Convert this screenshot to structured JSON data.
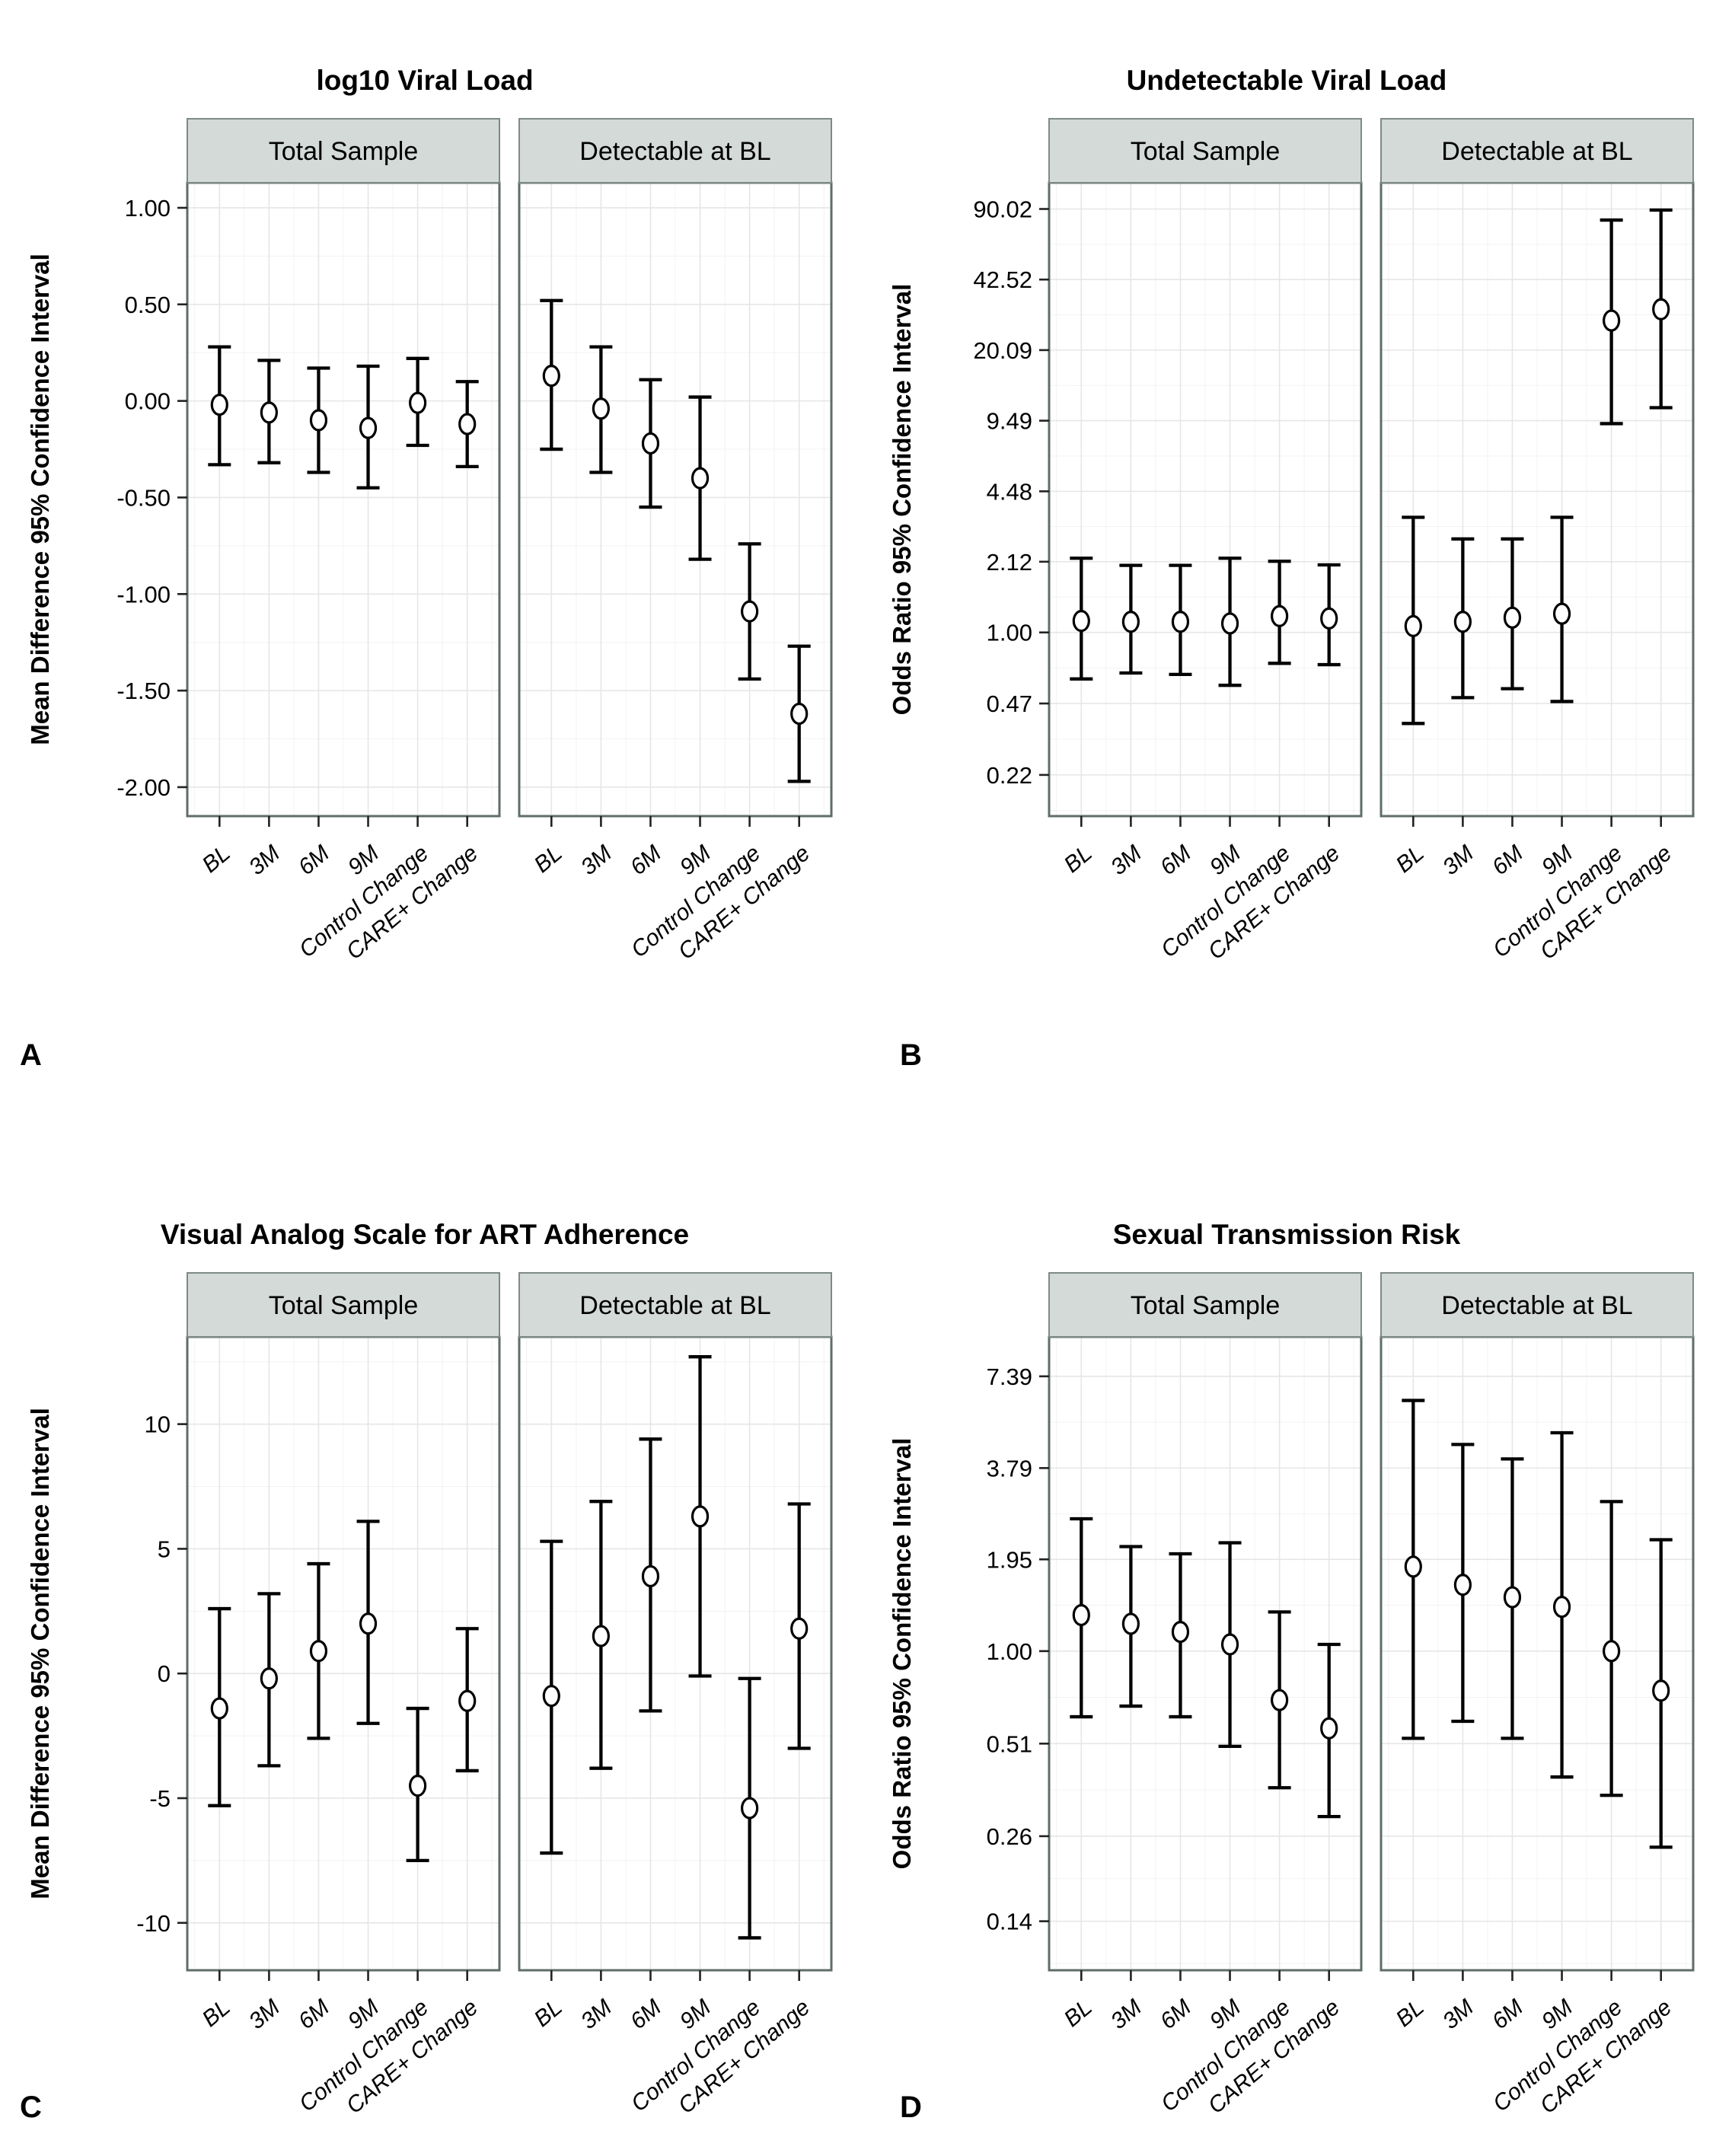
{
  "panel_letters": [
    "A",
    "B",
    "C",
    "D"
  ],
  "facet_names": [
    "Total Sample",
    "Detectable at BL"
  ],
  "categories": [
    "BL",
    "3M",
    "6M",
    "9M",
    "Control Change",
    "CARE+ Change"
  ],
  "colors": {
    "background": "#ffffff",
    "strip_fill": "#d4dad7",
    "strip_border": "#7d8a86",
    "panel_border": "#5f6d6a",
    "grid_major": "#e4e7e6",
    "grid_minor": "#f1f3f2",
    "tick": "#222222",
    "data": "#000000"
  },
  "chart_data": [
    {
      "id": "A",
      "type": "scatter",
      "error_bars": true,
      "title": "log10 Viral Load",
      "ylabel": "Mean Difference 95% Confidence Interval",
      "scale": "linear",
      "ylim": [
        -2.15,
        1.13
      ],
      "yticks": [
        1.0,
        0.5,
        0.0,
        -0.5,
        -1.0,
        -1.5,
        -2.0
      ],
      "ytick_labels": [
        "1.00",
        "0.50",
        "0.00",
        "-0.50",
        "-1.00",
        "-1.50",
        "-2.00"
      ],
      "legend": "none",
      "grid": true,
      "facets": [
        {
          "name": "Total Sample",
          "points": [
            {
              "x": "BL",
              "y": -0.02,
              "lo": -0.33,
              "hi": 0.28
            },
            {
              "x": "3M",
              "y": -0.06,
              "lo": -0.32,
              "hi": 0.21
            },
            {
              "x": "6M",
              "y": -0.1,
              "lo": -0.37,
              "hi": 0.17
            },
            {
              "x": "9M",
              "y": -0.14,
              "lo": -0.45,
              "hi": 0.18
            },
            {
              "x": "Control Change",
              "y": -0.01,
              "lo": -0.23,
              "hi": 0.22
            },
            {
              "x": "CARE+ Change",
              "y": -0.12,
              "lo": -0.34,
              "hi": 0.1
            }
          ]
        },
        {
          "name": "Detectable at BL",
          "points": [
            {
              "x": "BL",
              "y": 0.13,
              "lo": -0.25,
              "hi": 0.52
            },
            {
              "x": "3M",
              "y": -0.04,
              "lo": -0.37,
              "hi": 0.28
            },
            {
              "x": "6M",
              "y": -0.22,
              "lo": -0.55,
              "hi": 0.11
            },
            {
              "x": "9M",
              "y": -0.4,
              "lo": -0.82,
              "hi": 0.02
            },
            {
              "x": "Control Change",
              "y": -1.09,
              "lo": -1.44,
              "hi": -0.74
            },
            {
              "x": "CARE+ Change",
              "y": -1.62,
              "lo": -1.97,
              "hi": -1.27
            }
          ]
        }
      ]
    },
    {
      "id": "B",
      "type": "scatter",
      "error_bars": true,
      "title": "Undetectable Viral Load",
      "ylabel": "Odds Ratio 95% Confidence Interval",
      "scale": "log",
      "ylim": [
        0.142,
        119.0
      ],
      "yticks": [
        90.02,
        42.52,
        20.09,
        9.49,
        4.48,
        2.12,
        1.0,
        0.47,
        0.22
      ],
      "ytick_labels": [
        "90.02",
        "42.52",
        "20.09",
        "9.49",
        "4.48",
        "2.12",
        "1.00",
        "0.47",
        "0.22"
      ],
      "legend": "none",
      "grid": true,
      "facets": [
        {
          "name": "Total Sample",
          "points": [
            {
              "x": "BL",
              "y": 1.13,
              "lo": 0.61,
              "hi": 2.2
            },
            {
              "x": "3M",
              "y": 1.12,
              "lo": 0.65,
              "hi": 2.04
            },
            {
              "x": "6M",
              "y": 1.12,
              "lo": 0.64,
              "hi": 2.04
            },
            {
              "x": "9M",
              "y": 1.1,
              "lo": 0.57,
              "hi": 2.2
            },
            {
              "x": "Control Change",
              "y": 1.19,
              "lo": 0.72,
              "hi": 2.13
            },
            {
              "x": "CARE+ Change",
              "y": 1.16,
              "lo": 0.71,
              "hi": 2.05
            }
          ]
        },
        {
          "name": "Detectable at BL",
          "points": [
            {
              "x": "BL",
              "y": 1.07,
              "lo": 0.38,
              "hi": 3.4
            },
            {
              "x": "3M",
              "y": 1.12,
              "lo": 0.5,
              "hi": 2.7
            },
            {
              "x": "6M",
              "y": 1.17,
              "lo": 0.55,
              "hi": 2.7
            },
            {
              "x": "9M",
              "y": 1.22,
              "lo": 0.48,
              "hi": 3.4
            },
            {
              "x": "Control Change",
              "y": 27.5,
              "lo": 9.2,
              "hi": 80.0
            },
            {
              "x": "CARE+ Change",
              "y": 31.0,
              "lo": 10.9,
              "hi": 89.0
            }
          ]
        }
      ]
    },
    {
      "id": "C",
      "type": "scatter",
      "error_bars": true,
      "title": "Visual Analog Scale for ART Adherence",
      "ylabel": "Mean Difference 95% Confidence Interval",
      "scale": "linear",
      "ylim": [
        -11.9,
        13.5
      ],
      "yticks": [
        10,
        5,
        0,
        -5,
        -10
      ],
      "ytick_labels": [
        "10",
        "5",
        "0",
        "-5",
        "-10"
      ],
      "legend": "none",
      "grid": true,
      "facets": [
        {
          "name": "Total Sample",
          "points": [
            {
              "x": "BL",
              "y": -1.4,
              "lo": -5.3,
              "hi": 2.6
            },
            {
              "x": "3M",
              "y": -0.2,
              "lo": -3.7,
              "hi": 3.2
            },
            {
              "x": "6M",
              "y": 0.9,
              "lo": -2.6,
              "hi": 4.4
            },
            {
              "x": "9M",
              "y": 2.0,
              "lo": -2.0,
              "hi": 6.1
            },
            {
              "x": "Control Change",
              "y": -4.5,
              "lo": -7.5,
              "hi": -1.4
            },
            {
              "x": "CARE+ Change",
              "y": -1.1,
              "lo": -3.9,
              "hi": 1.8
            }
          ]
        },
        {
          "name": "Detectable at BL",
          "points": [
            {
              "x": "BL",
              "y": -0.9,
              "lo": -7.2,
              "hi": 5.3
            },
            {
              "x": "3M",
              "y": 1.5,
              "lo": -3.8,
              "hi": 6.9
            },
            {
              "x": "6M",
              "y": 3.9,
              "lo": -1.5,
              "hi": 9.4
            },
            {
              "x": "9M",
              "y": 6.3,
              "lo": -0.1,
              "hi": 12.7
            },
            {
              "x": "Control Change",
              "y": -5.4,
              "lo": -10.6,
              "hi": -0.2
            },
            {
              "x": "CARE+ Change",
              "y": 1.8,
              "lo": -3.0,
              "hi": 6.8
            }
          ]
        }
      ]
    },
    {
      "id": "D",
      "type": "scatter",
      "error_bars": true,
      "title": "Sexual Transmission Risk",
      "ylabel": "Odds Ratio 95% Confidence Interval",
      "scale": "log",
      "ylim": [
        0.098,
        9.85
      ],
      "yticks": [
        7.39,
        3.79,
        1.95,
        1.0,
        0.51,
        0.26,
        0.14
      ],
      "ytick_labels": [
        "7.39",
        "3.79",
        "1.95",
        "1.00",
        "0.51",
        "0.26",
        "0.14"
      ],
      "legend": "none",
      "grid": true,
      "facets": [
        {
          "name": "Total Sample",
          "points": [
            {
              "x": "BL",
              "y": 1.3,
              "lo": 0.62,
              "hi": 2.62
            },
            {
              "x": "3M",
              "y": 1.22,
              "lo": 0.67,
              "hi": 2.14
            },
            {
              "x": "6M",
              "y": 1.15,
              "lo": 0.62,
              "hi": 2.03
            },
            {
              "x": "9M",
              "y": 1.05,
              "lo": 0.5,
              "hi": 2.2
            },
            {
              "x": "Control Change",
              "y": 0.7,
              "lo": 0.37,
              "hi": 1.33
            },
            {
              "x": "CARE+ Change",
              "y": 0.57,
              "lo": 0.3,
              "hi": 1.05
            }
          ]
        },
        {
          "name": "Detectable at BL",
          "points": [
            {
              "x": "BL",
              "y": 1.85,
              "lo": 0.53,
              "hi": 6.2
            },
            {
              "x": "3M",
              "y": 1.62,
              "lo": 0.6,
              "hi": 4.5
            },
            {
              "x": "6M",
              "y": 1.48,
              "lo": 0.53,
              "hi": 4.05
            },
            {
              "x": "9M",
              "y": 1.38,
              "lo": 0.4,
              "hi": 4.9
            },
            {
              "x": "Control Change",
              "y": 1.0,
              "lo": 0.35,
              "hi": 2.97
            },
            {
              "x": "CARE+ Change",
              "y": 0.75,
              "lo": 0.24,
              "hi": 2.25
            }
          ]
        }
      ]
    }
  ]
}
